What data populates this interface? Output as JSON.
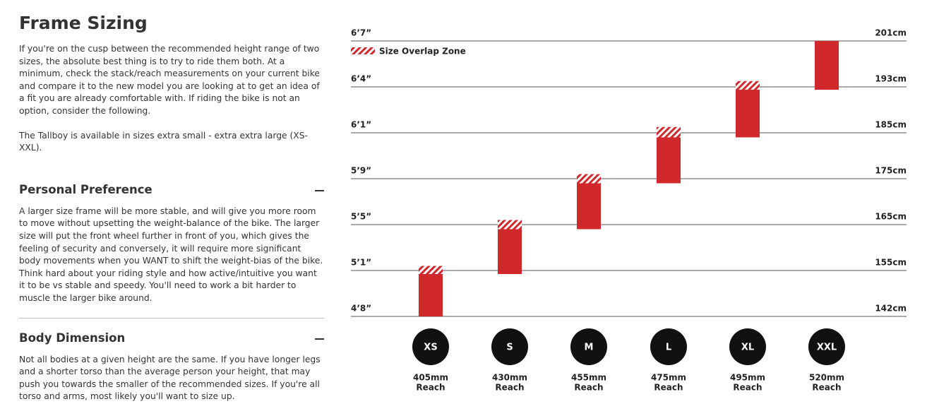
{
  "document": {
    "title": "Frame Sizing",
    "intro": [
      "If you're on the cusp between the recommended height range of two sizes, the absolute best thing is to try to ride them both. At a minimum, check the stack/reach measurements on your current bike and compare it to the new model you are looking at to get an idea of a fit you are already comfortable with. If riding the bike is not an option, consider the following.",
      "The Tallboy is available in sizes extra small - extra extra large (XS-XXL)."
    ],
    "sections": [
      {
        "heading": "Personal Preference",
        "body": "A larger size frame will be more stable, and will give you more room to move without upsetting the weight-balance of the bike. The larger size will put the front wheel further in front of you, which gives the feeling of security and conversely, it will require more significant body movements when you WANT to shift the weight-bias of the bike. Think hard about your riding style and how active/intuitive you want it to be vs stable and speedy. You'll need to work a bit harder to muscle the larger bike around."
      },
      {
        "heading": "Body Dimension",
        "body": "Not all bodies at a given height are the same. If you have longer legs and a shorter torso than the average person your height, that may push you towards the smaller of the recommended sizes. If you're all torso and arms, most likely you'll want to size up."
      }
    ]
  },
  "chart_data": {
    "type": "range-bar",
    "legend": "Size Overlap Zone",
    "color": "#d0282b",
    "yticks": [
      {
        "value": 142,
        "label": "142cm"
      },
      {
        "value": 155,
        "label": "155cm"
      },
      {
        "value": 165,
        "label": "165cm"
      },
      {
        "value": 175,
        "label": "175cm"
      },
      {
        "value": 185,
        "label": "185cm"
      },
      {
        "value": 193,
        "label": "193cm"
      },
      {
        "value": 201,
        "label": "201cm"
      }
    ],
    "height_labels": [
      "4’8”",
      "5’1”",
      "5’5”",
      "5’9”",
      "6’1”",
      "6’4”",
      "6’7”"
    ],
    "categories": [
      "XS",
      "S",
      "M",
      "L",
      "XL",
      "XXL"
    ],
    "low": [
      142,
      154,
      164,
      174,
      184,
      192.5
    ],
    "high": [
      156,
      166,
      176,
      186,
      194,
      201
    ],
    "reach_labels": [
      "405mm",
      "430mm",
      "455mm",
      "475mm",
      "495mm",
      "520mm"
    ],
    "reach_caption": "Reach"
  }
}
